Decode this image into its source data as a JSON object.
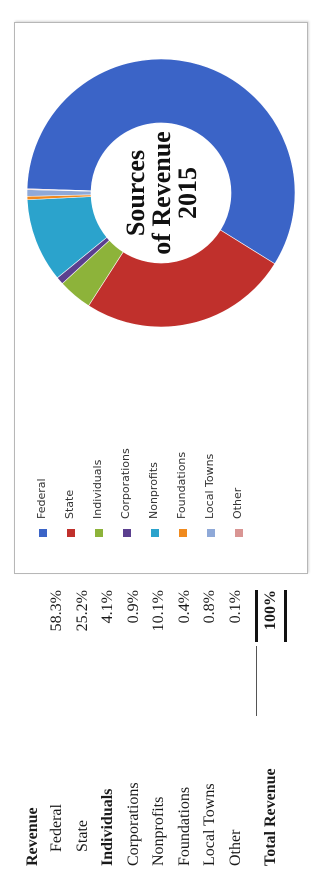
{
  "table": {
    "heading": "Revenue",
    "rows": [
      {
        "label": "Federal",
        "value": "58.3%"
      },
      {
        "label": "State",
        "value": "25.2%"
      },
      {
        "label": "Individuals",
        "value": "4.1%"
      },
      {
        "label": "Corporations",
        "value": "0.9%"
      },
      {
        "label": "Nonprofits",
        "value": "10.1%"
      },
      {
        "label": "Foundations",
        "value": "0.4%"
      },
      {
        "label": "Local Towns",
        "value": "0.8%"
      },
      {
        "label": "Other",
        "value": "0.1%"
      }
    ],
    "total_label": "Total Revenue",
    "total_value": "100%"
  },
  "chart_data": {
    "type": "pie",
    "title": "Sources of Revenue 2015",
    "title_lines": [
      "Sources",
      "of Revenue",
      "2015"
    ],
    "categories": [
      "Federal",
      "State",
      "Individuals",
      "Corporations",
      "Nonprofits",
      "Foundations",
      "Local Towns",
      "Other"
    ],
    "values": [
      58.3,
      25.2,
      4.1,
      0.9,
      10.1,
      0.4,
      0.8,
      0.1
    ],
    "colors": [
      "#3b64c7",
      "#c0302c",
      "#8db33a",
      "#5b3f8f",
      "#2ba3cc",
      "#f08a1e",
      "#8fa9d8",
      "#d99593"
    ],
    "legend_position": "left",
    "donut": true
  }
}
